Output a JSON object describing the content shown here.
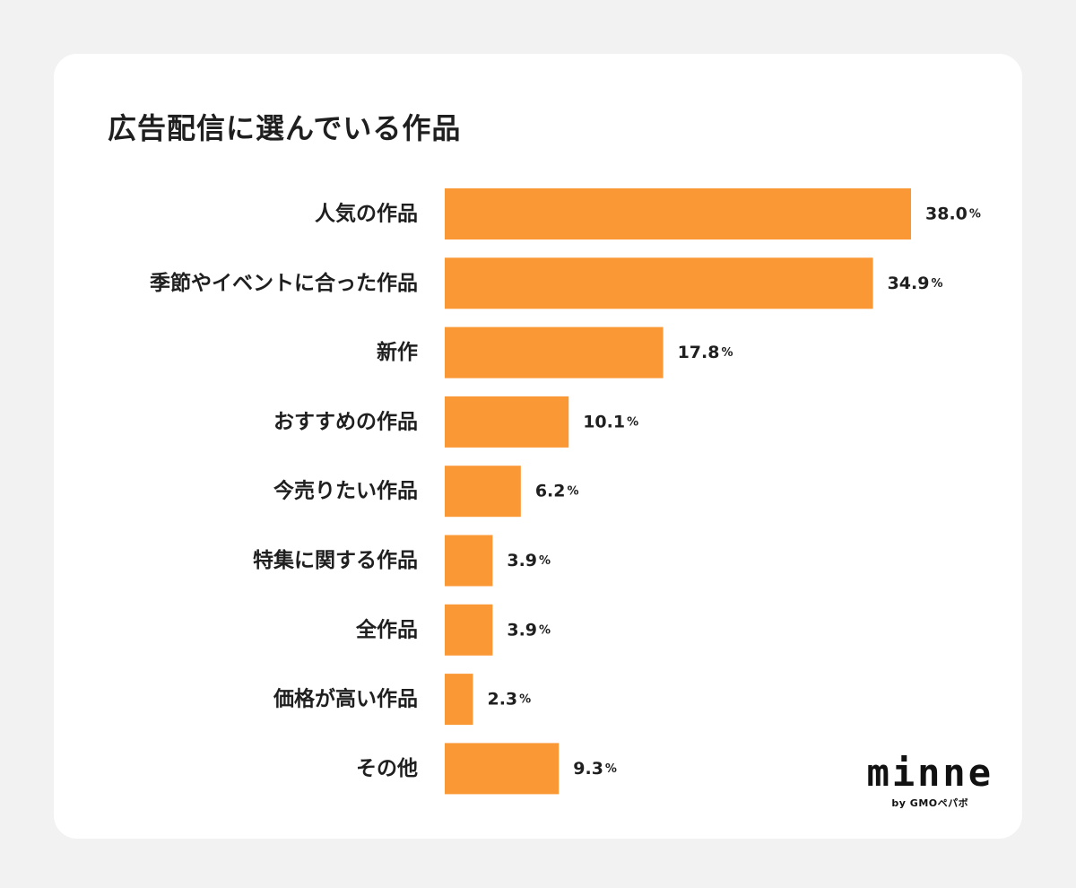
{
  "chart_data": {
    "type": "bar",
    "orientation": "horizontal",
    "title": "広告配信に選んでいる作品",
    "categories": [
      "人気の作品",
      "季節やイベントに合った作品",
      "新作",
      "おすすめの作品",
      "今売りたい作品",
      "特集に関する作品",
      "全作品",
      "価格が高い作品",
      "その他"
    ],
    "values": [
      38.0,
      34.9,
      17.8,
      10.1,
      6.2,
      3.9,
      3.9,
      2.3,
      9.3
    ],
    "value_labels": [
      "38.0",
      "34.9",
      "17.8",
      "10.1",
      "6.2",
      "3.9",
      "3.9",
      "2.3",
      "9.3"
    ],
    "unit": "%",
    "xlim": [
      0,
      40
    ],
    "grid": false,
    "bar_color": "#fb9836"
  },
  "logo": {
    "word": "minne",
    "sub": "by GMOペパボ"
  }
}
